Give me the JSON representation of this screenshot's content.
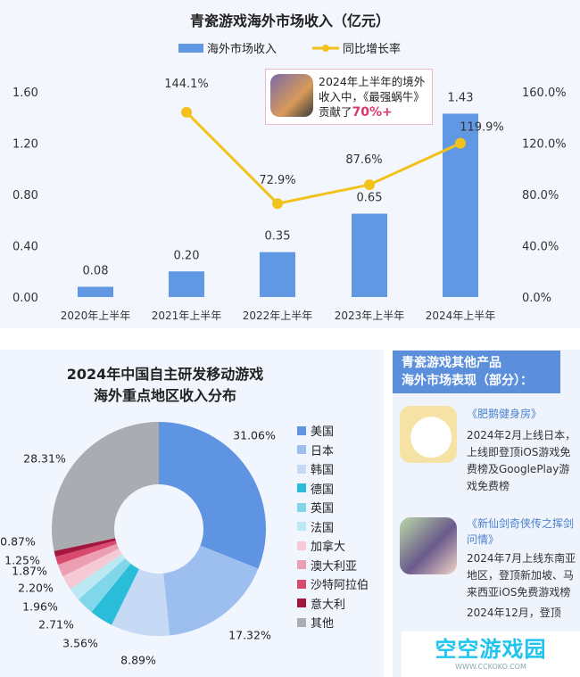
{
  "chart_data": [
    {
      "type": "bar+line",
      "title": "青瓷游戏海外市场收入（亿元）",
      "categories": [
        "2020年上半年",
        "2021年上半年",
        "2022年上半年",
        "2023年上半年",
        "2024年上半年"
      ],
      "series": [
        {
          "name": "海外市场收入",
          "type": "bar",
          "values": [
            0.08,
            0.2,
            0.35,
            0.65,
            1.43
          ],
          "labels": [
            "0.08",
            "0.20",
            "0.35",
            "0.65",
            "1.43"
          ],
          "color": "#6198e3"
        },
        {
          "name": "同比增长率",
          "type": "line",
          "values": [
            null,
            144.1,
            72.9,
            87.6,
            119.9
          ],
          "labels": [
            "",
            "144.1%",
            "72.9%",
            "87.6%",
            "119.9%"
          ],
          "color": "#f2c21b"
        }
      ],
      "y_left": {
        "ylim": [
          0,
          1.6
        ],
        "ticks": [
          "0.00",
          "0.40",
          "0.80",
          "1.20",
          "1.60"
        ]
      },
      "y_right": {
        "ylim": [
          0,
          160
        ],
        "ticks": [
          "0.0%",
          "40.0%",
          "80.0%",
          "120.0%",
          "160.0%"
        ]
      },
      "legend": "top",
      "grid": false,
      "annotation": {
        "text": "2024年上半年的境外收入中，《最强蜗牛》贡献了",
        "highlight": "70%+",
        "highlight_color": "#d9386a"
      }
    },
    {
      "type": "pie",
      "donut": true,
      "title_line1": "2024年中国自主研发移动游戏",
      "title_line2": "海外重点地区收入分布",
      "legend": "right",
      "slices": [
        {
          "name": "美国",
          "value": 31.06,
          "label": "31.06%",
          "color": "#5e94e2"
        },
        {
          "name": "日本",
          "value": 17.32,
          "label": "17.32%",
          "color": "#9dbff0"
        },
        {
          "name": "韩国",
          "value": 8.89,
          "label": "8.89%",
          "color": "#c6d9f5"
        },
        {
          "name": "德国",
          "value": 3.56,
          "label": "3.56%",
          "color": "#29bdd9"
        },
        {
          "name": "英国",
          "value": 2.71,
          "label": "2.71%",
          "color": "#80d7ea"
        },
        {
          "name": "法国",
          "value": 1.96,
          "label": "1.96%",
          "color": "#bbe9f3"
        },
        {
          "name": "加拿大",
          "value": 2.2,
          "label": "2.20%",
          "color": "#f6cad5"
        },
        {
          "name": "澳大利亚",
          "value": 1.87,
          "label": "1.87%",
          "color": "#ec9fb2"
        },
        {
          "name": "沙特阿拉伯",
          "value": 1.25,
          "label": "1.25%",
          "color": "#d94b6e"
        },
        {
          "name": "意大利",
          "value": 0.87,
          "label": "0.87%",
          "color": "#a3173e"
        },
        {
          "name": "其他",
          "value": 28.31,
          "label": "28.31%",
          "color": "#a9adb2"
        }
      ]
    }
  ],
  "side": {
    "title1": "青瓷游戏其他产品",
    "title2": "海外市场表现（部分）：",
    "products": [
      {
        "name": "《肥鹅健身房》",
        "desc": "2024年2月上线日本，上线即登顶iOS游戏免费榜及GooglePlay游戏免费榜"
      },
      {
        "name": "《新仙剑奇侠传之挥剑问情》",
        "desc": "2024年7月上线东南亚地区，登顶新加坡、马来西亚iOS免费游戏榜",
        "desc2": "2024年12月，登顶"
      }
    ]
  },
  "watermark": {
    "text": "空空游戏园",
    "url": "WWW.CCKOKO.COM"
  }
}
